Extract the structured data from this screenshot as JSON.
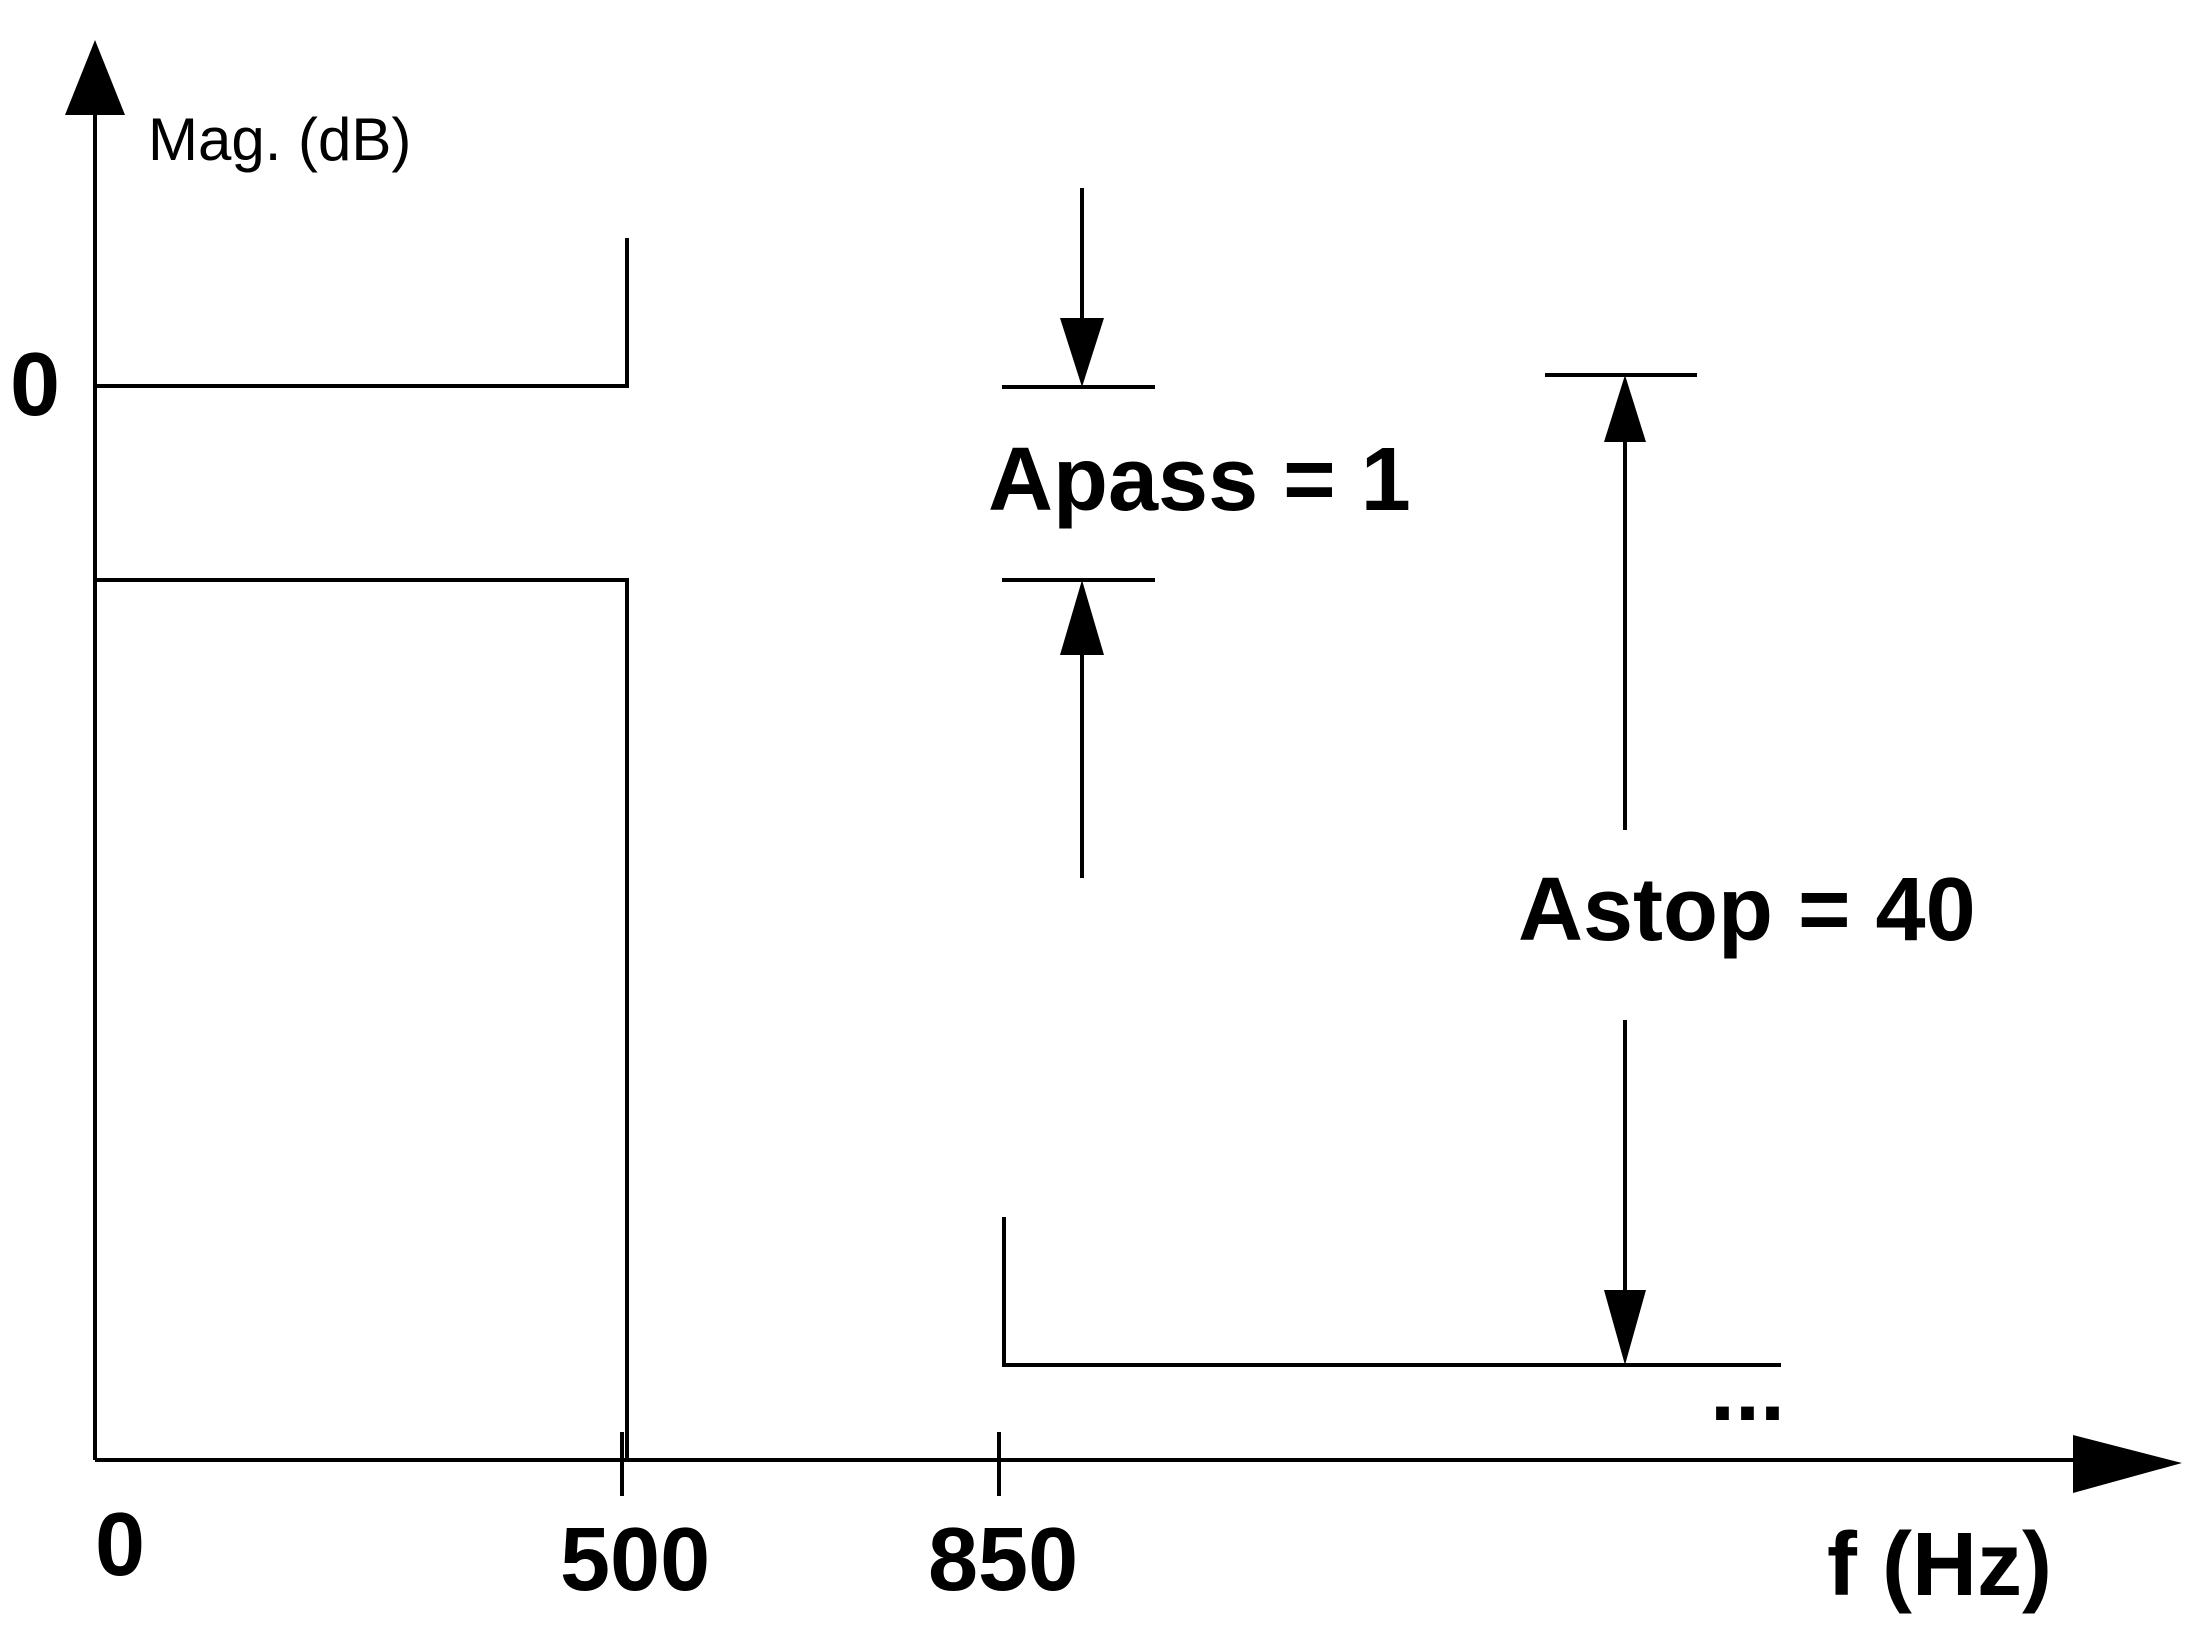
{
  "diagram": {
    "y_axis_label": "Mag. (dB)",
    "x_axis_label": "f (Hz)",
    "y_tick_label": "0",
    "x_tick_labels": [
      "0",
      "500",
      "850"
    ],
    "apass_label": "Apass = 1",
    "astop_label": "Astop = 40",
    "continuation": "..."
  }
}
